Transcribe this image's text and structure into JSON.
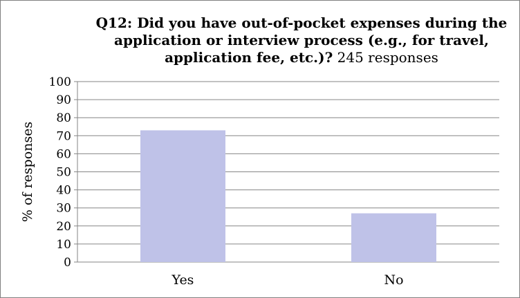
{
  "chart_data": {
    "type": "bar",
    "title": "Q12: Did you have out-of-pocket expenses during the application or interview process (e.g., for travel, application fee, etc.)?",
    "subtitle": "245 responses",
    "xlabel": "",
    "ylabel": "% of responses",
    "categories": [
      "Yes",
      "No"
    ],
    "values": [
      73,
      27
    ],
    "ylim": [
      0,
      100
    ],
    "yticks": [
      0,
      10,
      20,
      30,
      40,
      50,
      60,
      70,
      80,
      90,
      100
    ],
    "grid": true,
    "legend": "none",
    "bar_color": "#bfc2e8",
    "grid_color": "#868686"
  }
}
